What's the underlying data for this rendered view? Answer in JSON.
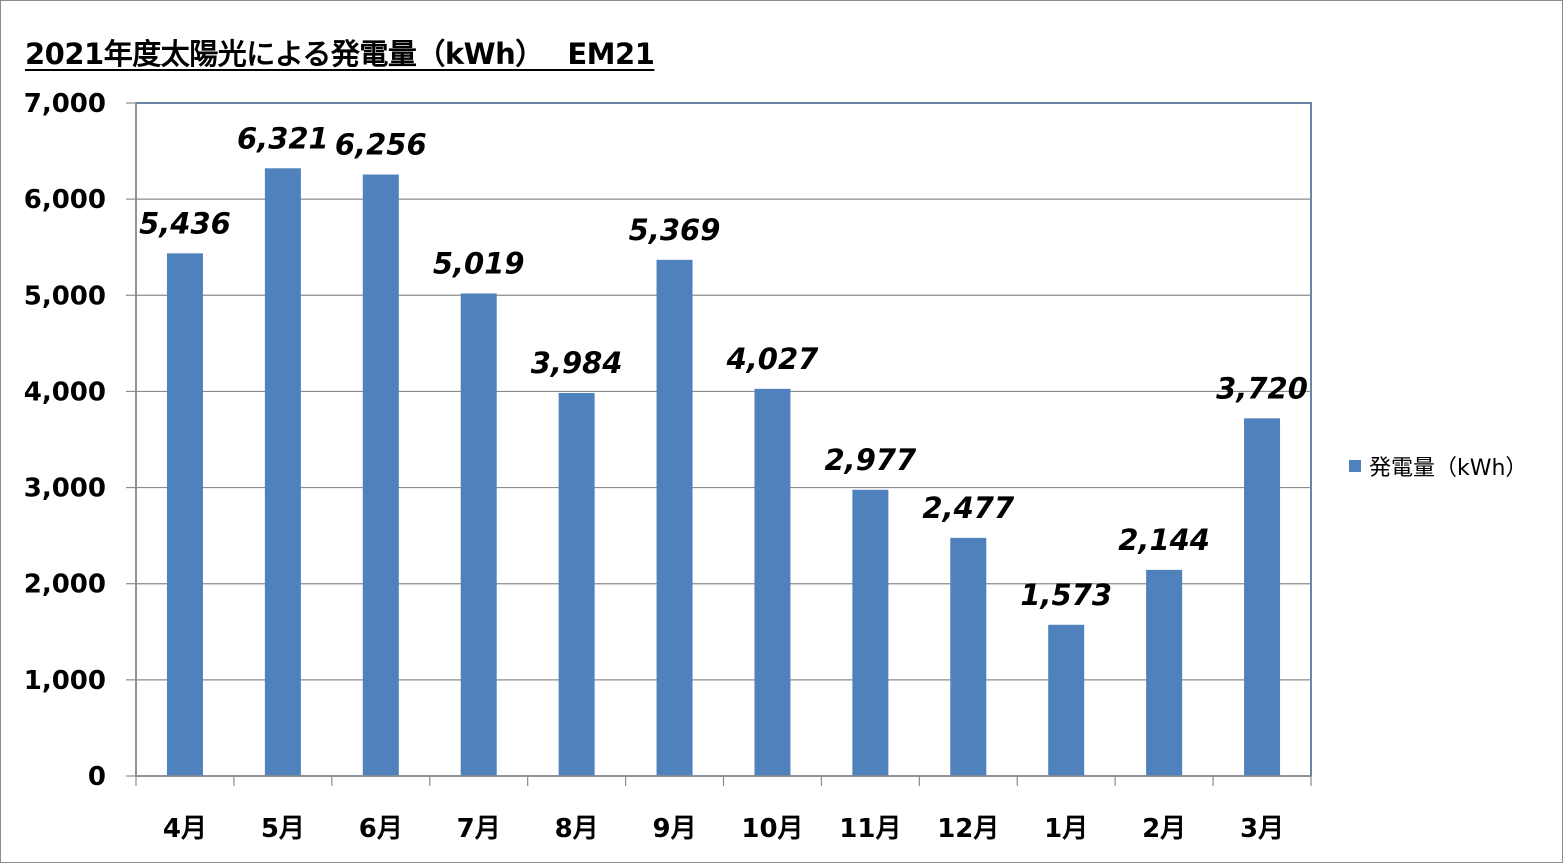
{
  "chart_data": {
    "type": "bar",
    "title": "2021年度太陽光による発電量（kWh）　 EM21",
    "categories": [
      "4月",
      "5月",
      "6月",
      "7月",
      "8月",
      "9月",
      "10月",
      "11月",
      "12月",
      "1月",
      "2月",
      "3月"
    ],
    "series": [
      {
        "name": "発電量（kWh）",
        "values": [
          5436,
          6321,
          6256,
          5019,
          3984,
          5369,
          4027,
          2977,
          2477,
          1573,
          2144,
          3720
        ],
        "labels": [
          "5,436",
          "6,321",
          "6,256",
          "5,019",
          "3,984",
          "5,369",
          "4,027",
          "2,977",
          "2,477",
          "1,573",
          "2,144",
          "3,720"
        ],
        "color": "#4f81bd"
      }
    ],
    "ylim": [
      0,
      7000
    ],
    "yticks": [
      0,
      1000,
      2000,
      3000,
      4000,
      5000,
      6000,
      7000
    ],
    "ytick_labels": [
      "0",
      "1,000",
      "2,000",
      "3,000",
      "4,000",
      "5,000",
      "6,000",
      "7,000"
    ],
    "grid": true,
    "legend": "right",
    "xlabel": "",
    "ylabel": ""
  }
}
